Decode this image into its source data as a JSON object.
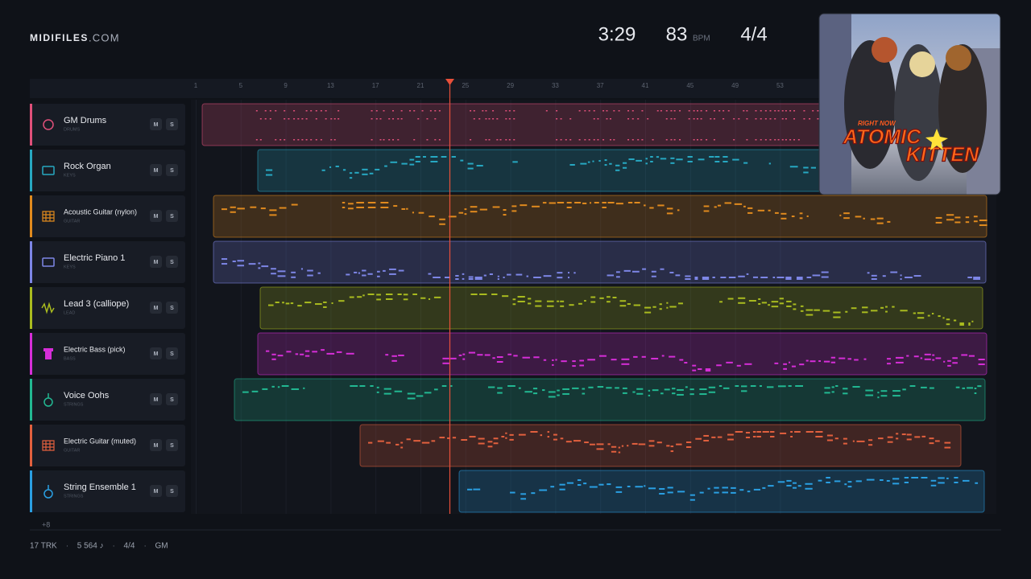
{
  "header": {
    "logo": "MIDIFILES",
    "logo_suffix": ".COM",
    "time": "3:29",
    "tempo": "83",
    "tempo_unit": "BPM",
    "meter": "4/4"
  },
  "ruler": [
    "1",
    "5",
    "9",
    "13",
    "17",
    "21",
    "25",
    "29",
    "33",
    "37",
    "41",
    "45",
    "49",
    "53"
  ],
  "tracks": [
    {
      "name": "GM Drums",
      "category": "DRUMS",
      "color": "#e0507a",
      "mute": "M",
      "solo": "S"
    },
    {
      "name": "Rock Organ",
      "category": "KEYS",
      "color": "#27a8c2",
      "mute": "M",
      "solo": "S"
    },
    {
      "name": "Acoustic Guitar (nylon)",
      "category": "GUITAR",
      "color": "#e08a1e",
      "mute": "M",
      "solo": "S"
    },
    {
      "name": "Electric Piano 1",
      "category": "KEYS",
      "color": "#7d86e6",
      "mute": "M",
      "solo": "S"
    },
    {
      "name": "Lead 3 (calliope)",
      "category": "LEAD",
      "color": "#a9bb1f",
      "mute": "M",
      "solo": "S"
    },
    {
      "name": "Electric Bass (pick)",
      "category": "BASS",
      "color": "#d62ed8",
      "mute": "M",
      "solo": "S"
    },
    {
      "name": "Voice Oohs",
      "category": "STRINGS",
      "color": "#22b892",
      "mute": "M",
      "solo": "S"
    },
    {
      "name": "Electric Guitar (muted)",
      "category": "GUITAR",
      "color": "#e2603e",
      "mute": "M",
      "solo": "S"
    },
    {
      "name": "String Ensemble 1",
      "category": "STRINGS",
      "color": "#2a9fe2",
      "mute": "M",
      "solo": "S"
    }
  ],
  "more_tracks": "+8",
  "footer": {
    "items": [
      "17 TRK",
      "5 564 ♪",
      "4/4",
      "GM"
    ],
    "separator": "·"
  },
  "album_art": {
    "tagline": "RIGHT NOW",
    "artist_line1": "ATOMIC",
    "artist_line2": "KITTEN"
  }
}
